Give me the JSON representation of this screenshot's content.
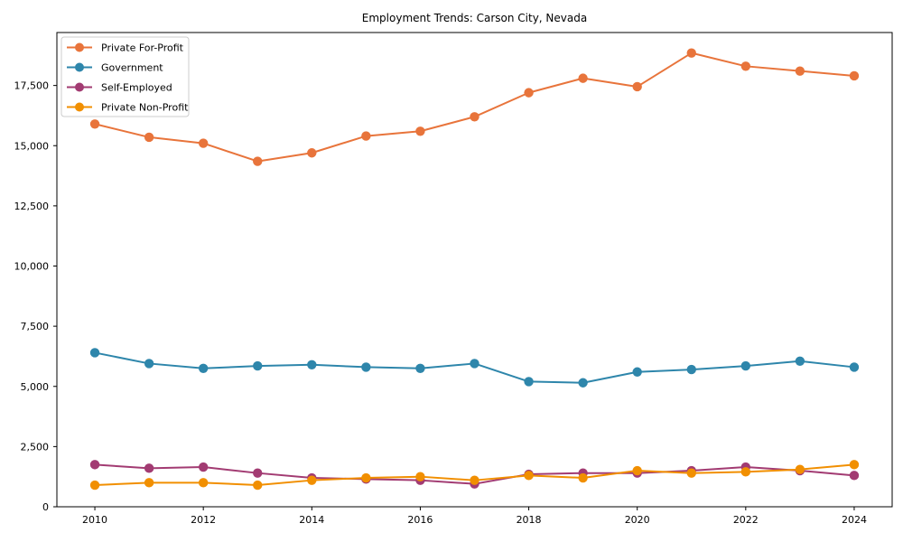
{
  "figure": {
    "title": "Employment Trends: Carson City, Nevada"
  },
  "chart_data": {
    "type": "line",
    "title": "Employment Trends: Carson City, Nevada",
    "xlabel": "",
    "ylabel": "",
    "grid": false,
    "legend_position": "upper-left",
    "marker": "circle",
    "x": [
      2010,
      2011,
      2012,
      2013,
      2014,
      2015,
      2016,
      2017,
      2018,
      2019,
      2020,
      2021,
      2022,
      2023,
      2024
    ],
    "series": [
      {
        "name": "Private For-Profit",
        "color": "#E8743B",
        "values": [
          15900,
          15350,
          15100,
          14350,
          14700,
          15400,
          15600,
          16200,
          17200,
          17800,
          17450,
          18850,
          18300,
          18100,
          17900
        ]
      },
      {
        "name": "Government",
        "color": "#2E86AB",
        "values": [
          6400,
          5950,
          5750,
          5850,
          5900,
          5800,
          5750,
          5950,
          5200,
          5150,
          5600,
          5700,
          5850,
          6050,
          5800
        ]
      },
      {
        "name": "Self-Employed",
        "color": "#A23B72",
        "values": [
          1750,
          1600,
          1650,
          1400,
          1200,
          1150,
          1100,
          950,
          1350,
          1400,
          1400,
          1500,
          1650,
          1500,
          1300
        ]
      },
      {
        "name": "Private Non-Profit",
        "color": "#F18F01",
        "values": [
          900,
          1000,
          1000,
          900,
          1100,
          1200,
          1250,
          1100,
          1300,
          1200,
          1500,
          1400,
          1450,
          1550,
          1750
        ]
      }
    ],
    "xlim": [
      2009.3,
      2024.7
    ],
    "ylim": [
      0,
      19700
    ],
    "xticks": [
      2010,
      2012,
      2014,
      2016,
      2018,
      2020,
      2022,
      2024
    ],
    "xtick_labels": [
      "2010",
      "2012",
      "2014",
      "2016",
      "2018",
      "2020",
      "2022",
      "2024"
    ],
    "yticks": [
      0,
      2500,
      5000,
      7500,
      10000,
      12500,
      15000,
      17500
    ],
    "ytick_labels": [
      "0",
      "2,500",
      "5,000",
      "7,500",
      "10,000",
      "12,500",
      "15,000",
      "17,500"
    ],
    "axis_color": "#000000",
    "legend_border_color": "#cccccc"
  }
}
